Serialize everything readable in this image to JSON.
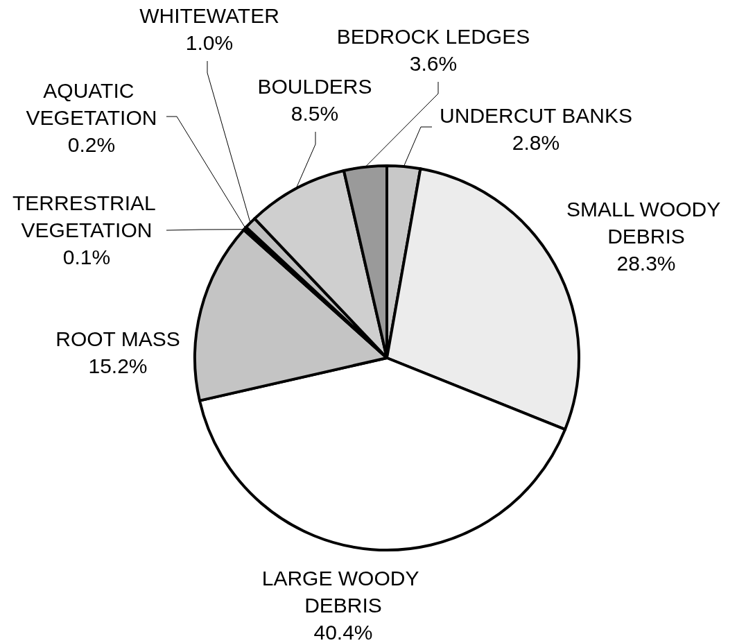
{
  "chart_data": {
    "type": "pie",
    "categories": [
      "UNDERCUT BANKS",
      "SMALL WOODY DEBRIS",
      "LARGE WOODY DEBRIS",
      "ROOT MASS",
      "TERRESTRIAL VEGETATION",
      "AQUATIC VEGETATION",
      "WHITEWATER",
      "BOULDERS",
      "BEDROCK LEDGES"
    ],
    "values": [
      2.8,
      28.3,
      40.4,
      15.2,
      0.1,
      0.2,
      1.0,
      8.5,
      3.6
    ],
    "value_labels": [
      "2.8%",
      "28.3%",
      "40.4%",
      "15.2%",
      "0.1%",
      "0.2%",
      "1.0%",
      "8.5%",
      "3.6%"
    ],
    "colors": [
      "#c8c8c8",
      "#ececec",
      "#ffffff",
      "#c4c4c4",
      "#000000",
      "#000000",
      "#c0c0c0",
      "#cfcfcf",
      "#9a9a9a"
    ]
  }
}
